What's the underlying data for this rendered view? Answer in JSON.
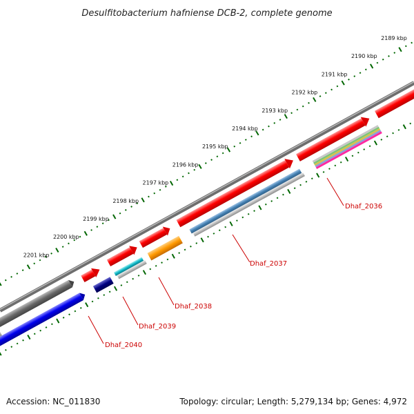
{
  "title": "Desulfitobacterium hafniense DCB-2, complete genome",
  "footer": {
    "accession": "Accession: NC_011830",
    "summary": "Topology: circular; Length: 5,279,134 bp; Genes: 4,972"
  },
  "scale": {
    "ticks": [
      "2189 kbp",
      "2190 kbp",
      "2191 kbp",
      "2192 kbp",
      "2193 kbp",
      "2194 kbp",
      "2195 kbp",
      "2196 kbp",
      "2197 kbp",
      "2198 kbp",
      "2199 kbp",
      "2200 kbp",
      "2201 kbp"
    ]
  },
  "genes": [
    {
      "name": "Dhaf_2036",
      "color": "#ff0000"
    },
    {
      "name": "Dhaf_2037",
      "color": "#ff0000"
    },
    {
      "name": "Dhaf_2038",
      "color": "#ff0000"
    },
    {
      "name": "Dhaf_2039",
      "color": "#ff0000"
    },
    {
      "name": "Dhaf_2040",
      "color": "#ff0000"
    }
  ],
  "colors": {
    "backbone": "#777777",
    "tick_marks": "#006600",
    "cds": "#ff0000",
    "label": "#cc0000",
    "reverse_strand": "#0000ee"
  }
}
